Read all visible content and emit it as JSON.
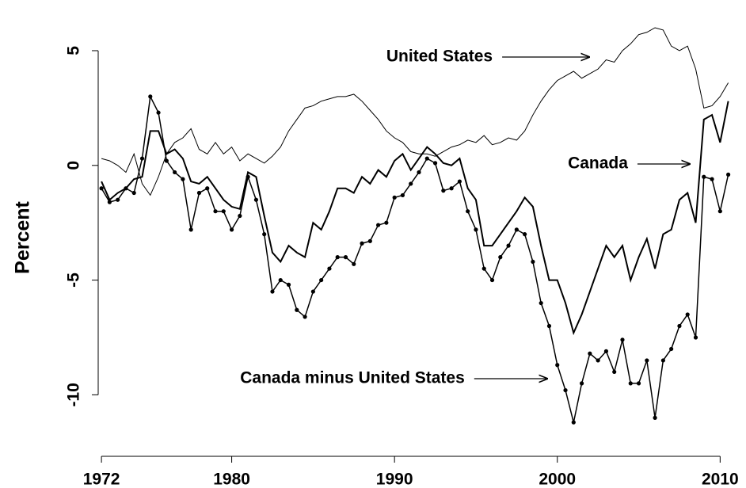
{
  "chart_data": {
    "type": "line",
    "ylabel": "Percent",
    "xlim": [
      1971.8,
      2011.2
    ],
    "xticks": [
      1972,
      1980,
      1990,
      2000,
      2010
    ],
    "ylim": [
      -12.3,
      6
    ],
    "yticks": [
      -10,
      -5,
      0,
      5
    ],
    "grid": false,
    "annotations": [
      {
        "text": "United States",
        "series": 0
      },
      {
        "text": "Canada",
        "series": 1
      },
      {
        "text": "Canada minus United States",
        "series": 2
      }
    ],
    "x": [
      1972,
      1972.5,
      1973,
      1973.5,
      1974,
      1974.5,
      1975,
      1975.5,
      1976,
      1976.5,
      1977,
      1977.5,
      1978,
      1978.5,
      1979,
      1979.5,
      1980,
      1980.5,
      1981,
      1981.5,
      1982,
      1982.5,
      1983,
      1983.5,
      1984,
      1984.5,
      1985,
      1985.5,
      1986,
      1986.5,
      1987,
      1987.5,
      1988,
      1988.5,
      1989,
      1989.5,
      1990,
      1990.5,
      1991,
      1991.5,
      1992,
      1992.5,
      1993,
      1993.5,
      1994,
      1994.5,
      1995,
      1995.5,
      1996,
      1996.5,
      1997,
      1997.5,
      1998,
      1998.5,
      1999,
      1999.5,
      2000,
      2000.5,
      2001,
      2001.5,
      2002,
      2002.5,
      2003,
      2003.5,
      2004,
      2004.5,
      2005,
      2005.5,
      2006,
      2006.5,
      2007,
      2007.5,
      2008,
      2008.5,
      2009,
      2009.5,
      2010,
      2010.5
    ],
    "series": [
      {
        "name": "United States",
        "color": "#000000",
        "line_width": 1,
        "markers": false,
        "values": [
          0.3,
          0.2,
          0,
          -0.3,
          0.5,
          -0.8,
          -1.3,
          -0.5,
          0.5,
          1.0,
          1.2,
          1.6,
          0.7,
          0.5,
          1.0,
          0.5,
          0.8,
          0.2,
          0.5,
          0.3,
          0.1,
          0.4,
          0.8,
          1.5,
          2.0,
          2.5,
          2.6,
          2.8,
          2.9,
          3.0,
          3.0,
          3.1,
          2.8,
          2.4,
          2.0,
          1.5,
          1.2,
          1.0,
          0.6,
          0.5,
          0.5,
          0.4,
          0.6,
          0.8,
          0.9,
          1.1,
          1.0,
          1.3,
          0.9,
          1.0,
          1.2,
          1.1,
          1.5,
          2.2,
          2.8,
          3.3,
          3.7,
          3.9,
          4.1,
          3.8,
          4.0,
          4.2,
          4.6,
          4.5,
          5.0,
          5.3,
          5.7,
          5.8,
          6.0,
          5.9,
          5.2,
          5.0,
          5.2,
          4.2,
          2.5,
          2.6,
          3.0,
          3.6
        ]
      },
      {
        "name": "Canada",
        "color": "#000000",
        "line_width": 2,
        "markers": false,
        "values": [
          -0.7,
          -1.5,
          -1.2,
          -1.0,
          -0.6,
          -0.5,
          1.5,
          1.5,
          0.5,
          0.7,
          0.3,
          -0.7,
          -0.8,
          -0.5,
          -1.0,
          -1.5,
          -1.8,
          -1.9,
          -0.3,
          -0.5,
          -2.2,
          -3.8,
          -4.2,
          -3.5,
          -3.8,
          -4.0,
          -2.5,
          -2.8,
          -2.0,
          -1.0,
          -1.0,
          -1.2,
          -0.5,
          -0.8,
          -0.2,
          -0.5,
          0.2,
          0.5,
          -0.2,
          0.3,
          0.8,
          0.5,
          0.1,
          0.0,
          0.3,
          -1.0,
          -1.5,
          -3.5,
          -3.5,
          -3.0,
          -2.5,
          -2.0,
          -1.4,
          -1.8,
          -3.5,
          -5.0,
          -5.0,
          -6.0,
          -7.3,
          -6.5,
          -5.5,
          -4.5,
          -3.5,
          -4.0,
          -3.5,
          -5.0,
          -4.0,
          -3.2,
          -4.5,
          -3.0,
          -2.8,
          -1.5,
          -1.2,
          -2.5,
          2.0,
          2.2,
          1.0,
          2.8
        ]
      },
      {
        "name": "Canada minus United States",
        "color": "#000000",
        "line_width": 1.5,
        "markers": true,
        "values": [
          -1.0,
          -1.6,
          -1.5,
          -1.0,
          -1.2,
          0.3,
          3.0,
          2.3,
          0.2,
          -0.3,
          -0.6,
          -2.8,
          -1.2,
          -1.0,
          -2.0,
          -2.0,
          -2.8,
          -2.2,
          -0.5,
          -1.5,
          -3.0,
          -5.5,
          -5.0,
          -5.2,
          -6.3,
          -6.6,
          -5.5,
          -5.0,
          -4.5,
          -4.0,
          -4.0,
          -4.3,
          -3.4,
          -3.3,
          -2.6,
          -2.5,
          -1.4,
          -1.3,
          -0.8,
          -0.3,
          0.3,
          0.1,
          -1.1,
          -1.0,
          -0.7,
          -2.0,
          -2.8,
          -4.5,
          -5.0,
          -4.0,
          -3.5,
          -2.8,
          -3.0,
          -4.2,
          -6.0,
          -7.0,
          -8.7,
          -9.8,
          -11.2,
          -9.5,
          -8.2,
          -8.5,
          -8.1,
          -9.0,
          -7.6,
          -9.5,
          -9.5,
          -8.5,
          -11.0,
          -8.5,
          -8.0,
          -7.0,
          -6.5,
          -7.5,
          -0.5,
          -0.6,
          -2.0,
          -0.4
        ]
      }
    ]
  }
}
